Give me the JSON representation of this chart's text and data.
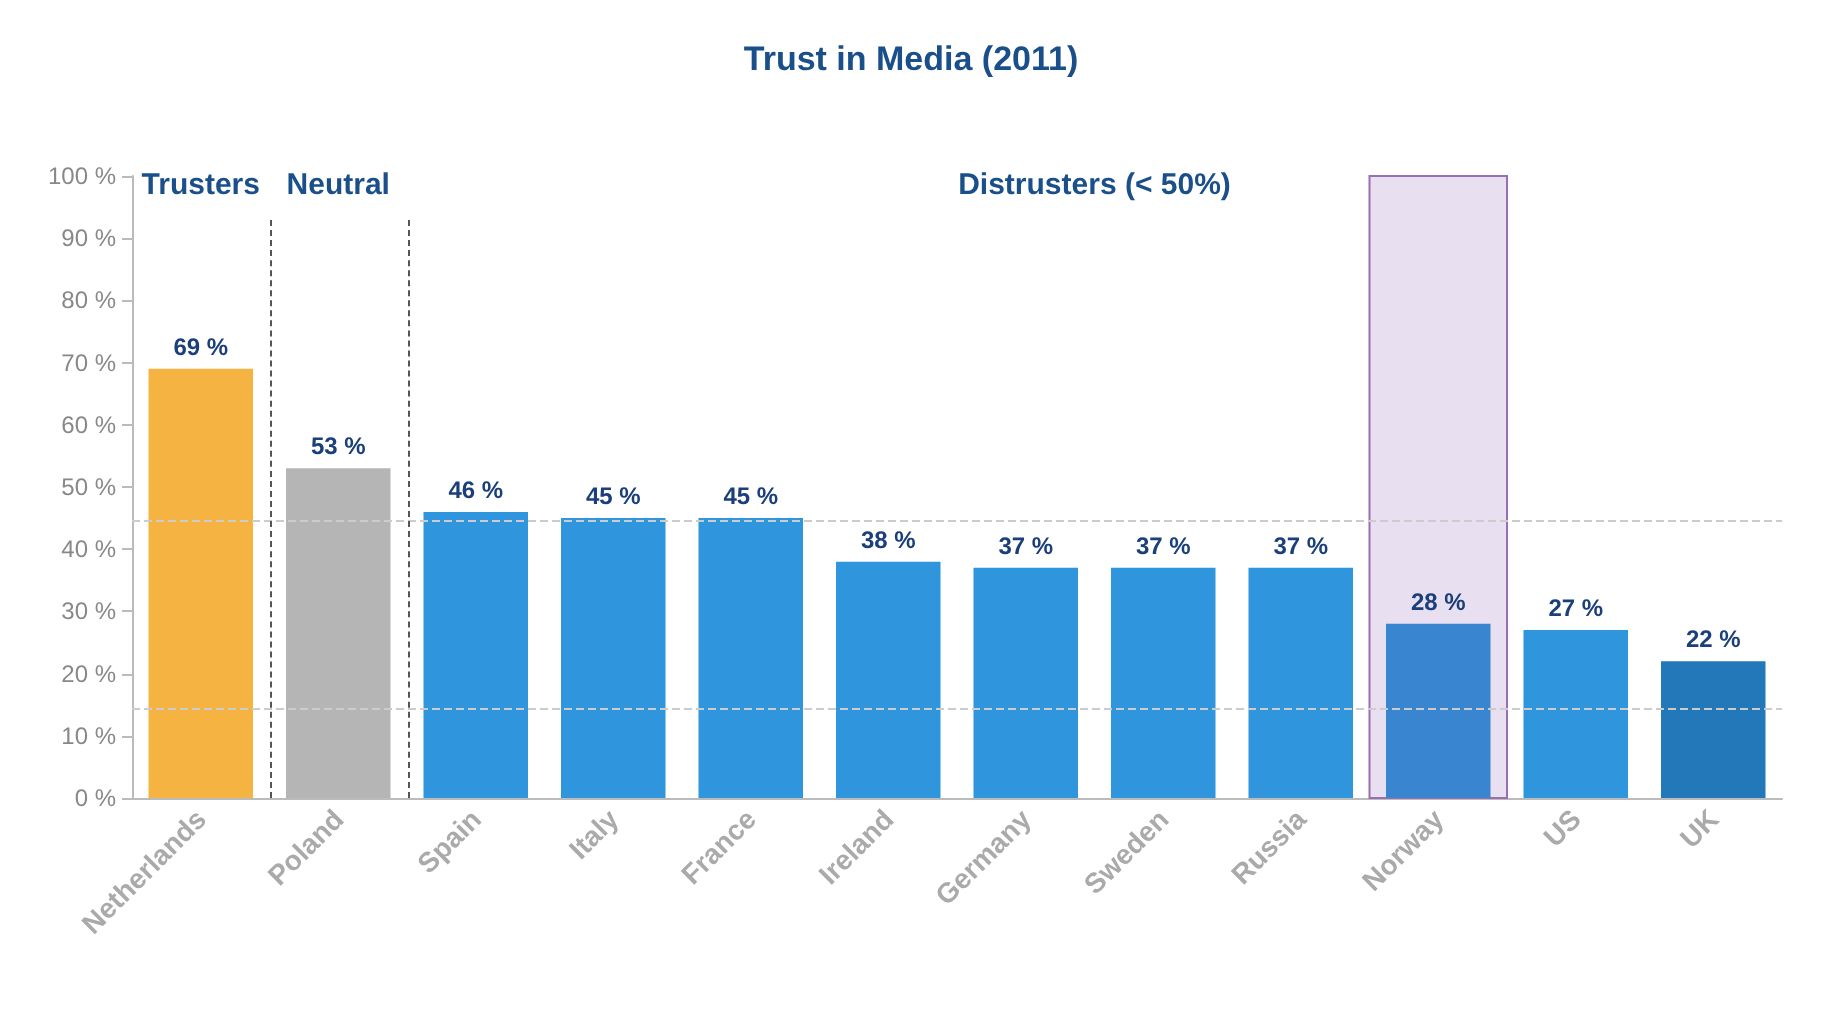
{
  "chart_data": {
    "type": "bar",
    "title": "Trust in Media (2011)",
    "categories": [
      "Netherlands",
      "Poland",
      "Spain",
      "Italy",
      "France",
      "Ireland",
      "Germany",
      "Sweden",
      "Russia",
      "Norway",
      "US",
      "UK"
    ],
    "values": [
      69,
      53,
      46,
      45,
      45,
      38,
      37,
      37,
      37,
      28,
      27,
      22
    ],
    "value_labels": [
      "69 %",
      "53 %",
      "46 %",
      "45 %",
      "45 %",
      "38 %",
      "37 %",
      "37 %",
      "37 %",
      "28 %",
      "27 %",
      "22 %"
    ],
    "colors": [
      "#f5b342",
      "#b5b5b5",
      "#2f95dc",
      "#2f95dc",
      "#2f95dc",
      "#2f95dc",
      "#2f95dc",
      "#2f95dc",
      "#2f95dc",
      "#3a85d0",
      "#2f95dc",
      "#2278b8"
    ],
    "ylim": [
      0,
      100
    ],
    "yticks": [
      {
        "value": 0,
        "label": "0 %"
      },
      {
        "value": 10,
        "label": "10 %"
      },
      {
        "value": 20,
        "label": "20 %"
      },
      {
        "value": 30,
        "label": "30 %"
      },
      {
        "value": 40,
        "label": "40 %"
      },
      {
        "value": 50,
        "label": "50 %"
      },
      {
        "value": 60,
        "label": "60 %"
      },
      {
        "value": 70,
        "label": "70 %"
      },
      {
        "value": 80,
        "label": "80 %"
      },
      {
        "value": 90,
        "label": "90 %"
      },
      {
        "value": 100,
        "label": "100 %"
      }
    ],
    "grid": false,
    "ref_lines": [
      {
        "axis": "y",
        "value": 44.5,
        "color": "#cccccc",
        "line_style": "dashed"
      },
      {
        "axis": "y",
        "value": 14.5,
        "color": "#cccccc",
        "line_style": "dashed"
      }
    ],
    "bands": [
      {
        "axis": "x",
        "from": "Norway",
        "to": "Norway",
        "color": "#e8dff0"
      }
    ],
    "annotations": [
      "Trusters",
      "Neutral",
      "Distrusters (< 50%)"
    ]
  }
}
